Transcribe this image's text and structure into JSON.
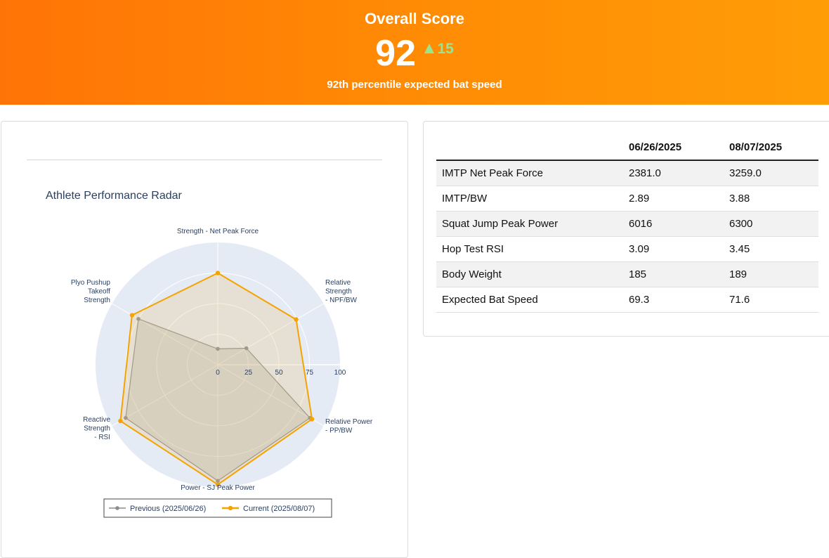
{
  "header": {
    "title": "Overall Score",
    "score": "92",
    "delta": "15",
    "subtitle": "92th percentile expected bat speed"
  },
  "colors": {
    "header_gradient_start": "#ff7406",
    "header_gradient_end": "#ff9d06",
    "delta_up": "#9be48f",
    "previous_series": "#8c8c8c",
    "current_series": "#f5a300",
    "polar_background": "#e5ebf5"
  },
  "icons": {
    "delta": "triangle-up-icon"
  },
  "table": {
    "columns": [
      "",
      "06/26/2025",
      "08/07/2025"
    ],
    "rows": [
      {
        "metric": "IMTP Net Peak Force",
        "previous": "2381.0",
        "current": "3259.0"
      },
      {
        "metric": "IMTP/BW",
        "previous": "2.89",
        "current": "3.88"
      },
      {
        "metric": "Squat Jump Peak Power",
        "previous": "6016",
        "current": "6300"
      },
      {
        "metric": "Hop Test RSI",
        "previous": "3.09",
        "current": "3.45"
      },
      {
        "metric": "Body Weight",
        "previous": "185",
        "current": "189"
      },
      {
        "metric": "Expected Bat Speed",
        "previous": "69.3",
        "current": "71.6"
      }
    ]
  },
  "chart_data": {
    "type": "radar",
    "title": "Athlete Performance Radar",
    "categories": [
      [
        "Strength - Net Peak Force"
      ],
      [
        "Relative",
        "Strength",
        "- NPF/BW"
      ],
      [
        "Relative Power",
        "- PP/BW"
      ],
      [
        "Power - SJ Peak Power"
      ],
      [
        "Reactive",
        "Strength",
        "- RSI"
      ],
      [
        "Plyo Pushup",
        "Takeoff",
        "Strength"
      ]
    ],
    "radial_ticks": [
      "0",
      "25",
      "50",
      "75",
      "100"
    ],
    "rlim": [
      0,
      100
    ],
    "grid": true,
    "legend_position": "bottom",
    "series": [
      {
        "name": "Previous (2025/06/26)",
        "values": [
          13,
          27,
          87,
          95,
          87,
          75
        ]
      },
      {
        "name": "Current (2025/08/07)",
        "values": [
          75,
          74,
          89,
          98,
          92,
          81
        ]
      }
    ]
  }
}
